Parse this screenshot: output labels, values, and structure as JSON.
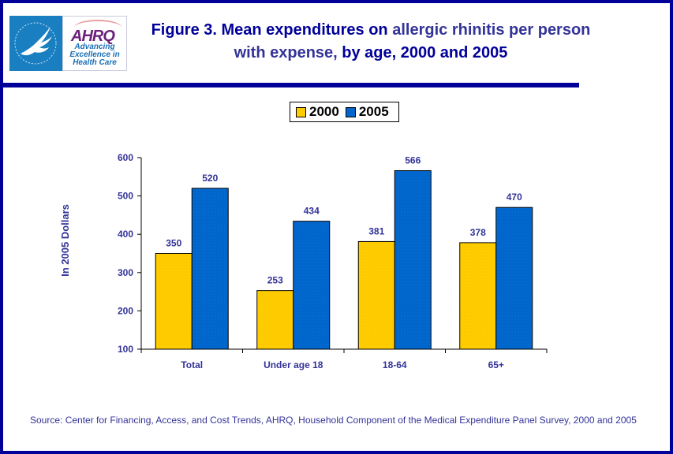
{
  "header": {
    "logo_hhs_label": "Department of Health & Human Services USA",
    "logo_ahrq_name": "AHRQ",
    "logo_ahrq_tagline": [
      "Advancing",
      "Excellence in",
      "Health Care"
    ],
    "title_part1": "Figure 3. Mean expenditures on ",
    "title_part2": "allergic rhinitis per person with expense, ",
    "title_part3": "by age, 2000 and 2005"
  },
  "colors": {
    "frame": "#000099",
    "text": "#333399",
    "series_2000": "#ffcc00",
    "series_2005": "#0066cc"
  },
  "chart_data": {
    "type": "bar",
    "title": "Figure 3. Mean expenditures on allergic rhinitis per person with expense, by age, 2000 and 2005",
    "xlabel": "",
    "ylabel": "In 2005 Dollars",
    "ylim": [
      100,
      600
    ],
    "yticks": [
      100,
      200,
      300,
      400,
      500,
      600
    ],
    "categories": [
      "Total",
      "Under age 18",
      "18-64",
      "65+"
    ],
    "series": [
      {
        "name": "2000",
        "color": "#ffcc00",
        "values": [
          350,
          253,
          381,
          378
        ]
      },
      {
        "name": "2005",
        "color": "#0066cc",
        "values": [
          520,
          434,
          566,
          470
        ]
      }
    ],
    "legend": {
      "position": "top-center",
      "entries": [
        "2000",
        "2005"
      ]
    },
    "grid": false,
    "data_labels": true
  },
  "footer": {
    "source": "Source: Center for Financing, Access, and Cost Trends, AHRQ, Household Component of the Medical Expenditure Panel Survey, 2000 and 2005"
  }
}
